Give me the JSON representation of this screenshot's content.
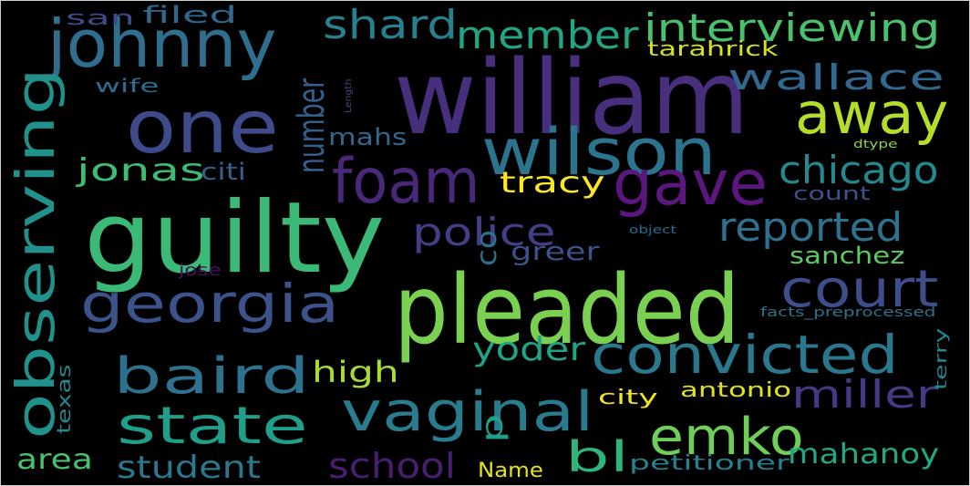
{
  "words": [
    {
      "text": "william",
      "color": "#472f7d"
    },
    {
      "text": "guilty",
      "color": "#3aba76"
    },
    {
      "text": "pleaded",
      "color": "#7ad151"
    },
    {
      "text": "one",
      "color": "#3e4a89"
    },
    {
      "text": "johnny",
      "color": "#2e6e8e"
    },
    {
      "text": "wilson",
      "color": "#2c738e"
    },
    {
      "text": "foam",
      "color": "#482878"
    },
    {
      "text": "gave",
      "color": "#5c167f"
    },
    {
      "text": "away",
      "color": "#b5de2b"
    },
    {
      "text": "interviewing",
      "color": "#4ac16d"
    },
    {
      "text": "member",
      "color": "#21a685"
    },
    {
      "text": "shard",
      "color": "#27808e"
    },
    {
      "text": "wallace",
      "color": "#31688e"
    },
    {
      "text": "observing",
      "color": "#21918c"
    },
    {
      "text": "georgia",
      "color": "#3b528b"
    },
    {
      "text": "court",
      "color": "#3d4e8a"
    },
    {
      "text": "convicted",
      "color": "#2a788e"
    },
    {
      "text": "baird",
      "color": "#2d718e"
    },
    {
      "text": "state",
      "color": "#1f9e89"
    },
    {
      "text": "vaginal",
      "color": "#287c8e"
    },
    {
      "text": "emko",
      "color": "#6ece58"
    },
    {
      "text": "chicago",
      "color": "#23898e"
    },
    {
      "text": "reported",
      "color": "#2c728e"
    },
    {
      "text": "police",
      "color": "#433e85"
    },
    {
      "text": "number",
      "color": "#355f8d"
    },
    {
      "text": "jonas",
      "color": "#3fbc73"
    },
    {
      "text": "citi",
      "color": "#33638d"
    },
    {
      "text": "mahs",
      "color": "#31668e"
    },
    {
      "text": "tracy",
      "color": "#fde725"
    },
    {
      "text": "greer",
      "color": "#3b528b"
    },
    {
      "text": "co",
      "color": "#2c718e"
    },
    {
      "text": "sanchez",
      "color": "#5ec962"
    },
    {
      "text": "yoder",
      "color": "#20a386"
    },
    {
      "text": "high",
      "color": "#a5db36"
    },
    {
      "text": "miller",
      "color": "#443983"
    },
    {
      "text": "mahanoy",
      "color": "#22a785"
    },
    {
      "text": "p",
      "color": "#1fa088"
    },
    {
      "text": "bl",
      "color": "#2fb47c"
    },
    {
      "text": "school",
      "color": "#481f70"
    },
    {
      "text": "student",
      "color": "#2a788e"
    },
    {
      "text": "area",
      "color": "#4ac16d"
    },
    {
      "text": "texas",
      "color": "#24878e"
    },
    {
      "text": "jose",
      "color": "#471063"
    },
    {
      "text": "terry",
      "color": "#25858e"
    },
    {
      "text": "city",
      "color": "#f1e51d"
    },
    {
      "text": "antonio",
      "color": "#dde318"
    },
    {
      "text": "Name",
      "color": "#e2e418"
    },
    {
      "text": "petitioner",
      "color": "#26818e"
    },
    {
      "text": "san",
      "color": "#3e4a89"
    },
    {
      "text": "filed",
      "color": "#31688e"
    },
    {
      "text": "wife",
      "color": "#2e6d8e"
    },
    {
      "text": "tarahrick",
      "color": "#d8e219"
    },
    {
      "text": "Length",
      "color": "#414487"
    },
    {
      "text": "count",
      "color": "#3b528b"
    },
    {
      "text": "dtype",
      "color": "#8fd744"
    },
    {
      "text": "object",
      "color": "#2a6a8e"
    },
    {
      "text": "facts_preprocessed",
      "color": "#2c728e"
    }
  ]
}
